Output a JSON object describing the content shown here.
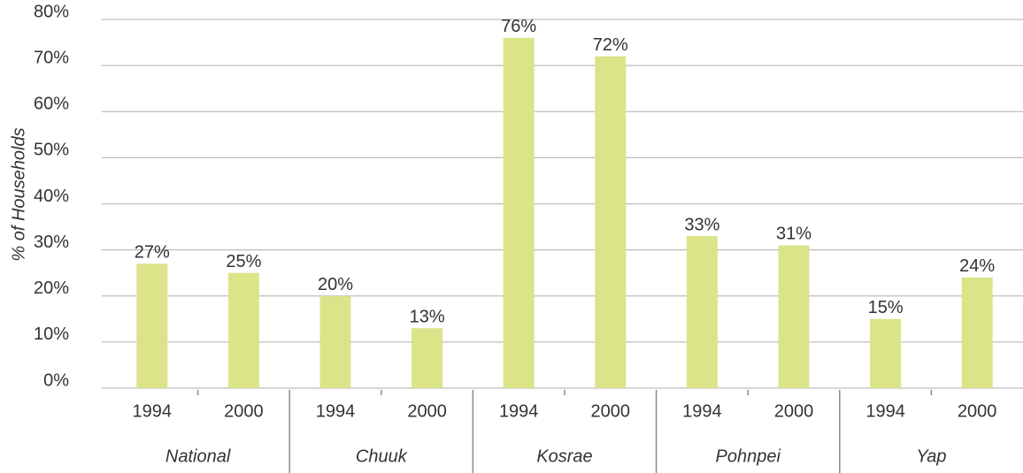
{
  "chart_data": {
    "type": "bar",
    "y_label": "% of Households",
    "groups": [
      "National",
      "Chuuk",
      "Kosrae",
      "Pohnpei",
      "Yap"
    ],
    "categories": [
      "1994",
      "2000",
      "1994",
      "2000",
      "1994",
      "2000",
      "1994",
      "2000",
      "1994",
      "2000"
    ],
    "values": [
      27,
      25,
      20,
      13,
      76,
      72,
      33,
      31,
      15,
      24
    ],
    "value_labels": [
      "27%",
      "25%",
      "20%",
      "13%",
      "76%",
      "72%",
      "33%",
      "31%",
      "15%",
      "24%"
    ],
    "color": "#dbe489",
    "ylim": [
      0,
      80
    ],
    "yticks": [
      {
        "value": 0,
        "label": "0%"
      },
      {
        "value": 10,
        "label": "10%"
      },
      {
        "value": 20,
        "label": "20%"
      },
      {
        "value": 30,
        "label": "30%"
      },
      {
        "value": 40,
        "label": "40%"
      },
      {
        "value": 50,
        "label": "50%"
      },
      {
        "value": 60,
        "label": "60%"
      },
      {
        "value": 70,
        "label": "70%"
      },
      {
        "value": 80,
        "label": "80%"
      }
    ],
    "grid": true
  }
}
